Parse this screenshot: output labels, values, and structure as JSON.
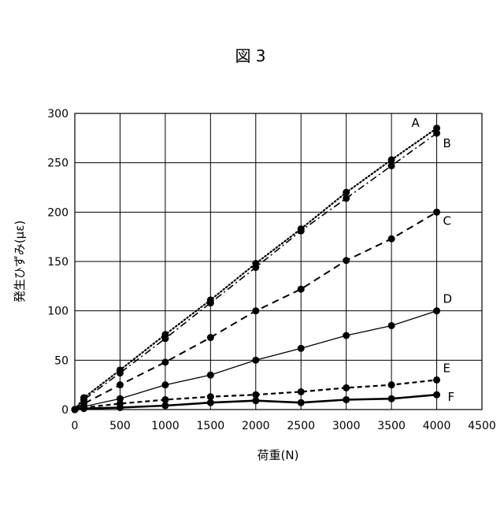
{
  "figure_title": "図 3",
  "chart_data": {
    "type": "line",
    "xlabel": "荷重(N)",
    "ylabel": "発生ひずみ(με)",
    "xlim": [
      0,
      4500
    ],
    "ylim": [
      0,
      300
    ],
    "xticks": [
      0,
      500,
      1000,
      1500,
      2000,
      2500,
      3000,
      3500,
      4000,
      4500
    ],
    "yticks": [
      0,
      50,
      100,
      150,
      200,
      250,
      300
    ],
    "grid": true,
    "x": [
      0,
      100,
      500,
      1000,
      1500,
      2000,
      2500,
      3000,
      3500,
      4000
    ],
    "series": [
      {
        "name": "A",
        "style": "dotted",
        "values": [
          0,
          12,
          40,
          76,
          111,
          148,
          183,
          220,
          253,
          285
        ]
      },
      {
        "name": "B",
        "style": "dashdot",
        "values": [
          0,
          10,
          37,
          72,
          108,
          144,
          181,
          214,
          247,
          280
        ]
      },
      {
        "name": "C",
        "style": "dashed",
        "values": [
          0,
          6,
          25,
          48,
          73,
          100,
          122,
          151,
          173,
          200
        ]
      },
      {
        "name": "D",
        "style": "solid-thin",
        "values": [
          0,
          3,
          11,
          25,
          35,
          50,
          62,
          75,
          85,
          100
        ]
      },
      {
        "name": "E",
        "style": "dashed-short",
        "values": [
          0,
          2,
          6,
          10,
          13,
          15,
          18,
          22,
          25,
          30
        ]
      },
      {
        "name": "F",
        "style": "solid-thick",
        "values": [
          0,
          1,
          2,
          4,
          7,
          9,
          7,
          10,
          11,
          15
        ]
      }
    ]
  }
}
